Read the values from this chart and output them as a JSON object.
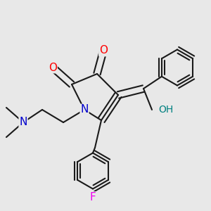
{
  "bg_color": "#e8e8e8",
  "bond_color": "#1a1a1a",
  "bond_width": 1.5,
  "atom_colors": {
    "O": "#ff0000",
    "N": "#0000cc",
    "F": "#ee00ee",
    "OH_color": "#008080",
    "C": "#1a1a1a"
  }
}
